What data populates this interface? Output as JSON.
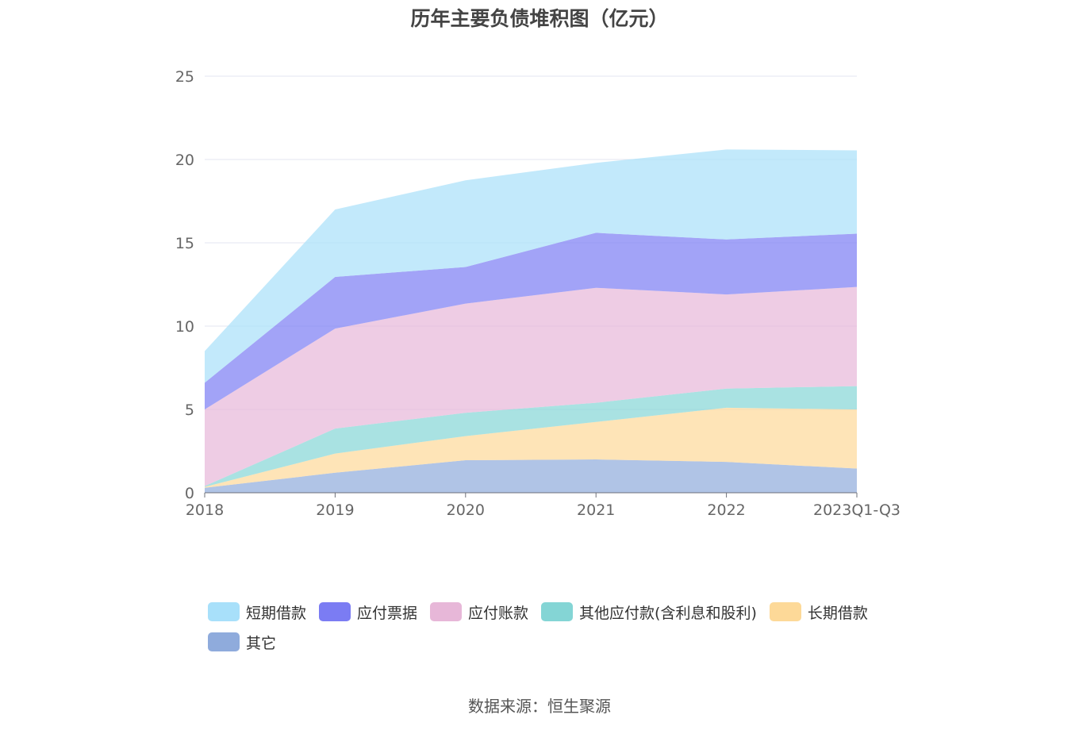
{
  "chart_data": {
    "type": "area",
    "stacked": true,
    "title": "历年主要负债堆积图（亿元）",
    "categories": [
      "2018",
      "2019",
      "2020",
      "2021",
      "2022",
      "2023Q1-Q3"
    ],
    "ylim": [
      0,
      25
    ],
    "yticks": [
      0,
      5,
      10,
      15,
      20,
      25
    ],
    "grid": true,
    "legend_position": "bottom",
    "series": [
      {
        "name": "其它",
        "color": "#8fabdc",
        "values": [
          0.3,
          1.2,
          1.95,
          2.0,
          1.85,
          1.45
        ]
      },
      {
        "name": "长期借款",
        "color": "#fdd998",
        "values": [
          0.05,
          1.15,
          1.45,
          2.25,
          3.25,
          3.55
        ]
      },
      {
        "name": "其他应付款(含利息和股利)",
        "color": "#84d5d5",
        "values": [
          0.05,
          1.5,
          1.4,
          1.15,
          1.15,
          1.4
        ]
      },
      {
        "name": "应付账款",
        "color": "#e7b7d8",
        "values": [
          4.6,
          6.0,
          6.55,
          6.9,
          5.65,
          5.95
        ]
      },
      {
        "name": "应付票据",
        "color": "#7b7cf3",
        "values": [
          1.6,
          3.1,
          2.2,
          3.3,
          3.3,
          3.2
        ]
      },
      {
        "name": "短期借款",
        "color": "#a8e0fa",
        "values": [
          1.9,
          4.05,
          5.2,
          4.2,
          5.4,
          5.0
        ]
      }
    ],
    "legend_order": [
      "短期借款",
      "应付票据",
      "应付账款",
      "其他应付款(含利息和股利)",
      "长期借款",
      "其它"
    ]
  },
  "source": "数据来源：恒生聚源"
}
